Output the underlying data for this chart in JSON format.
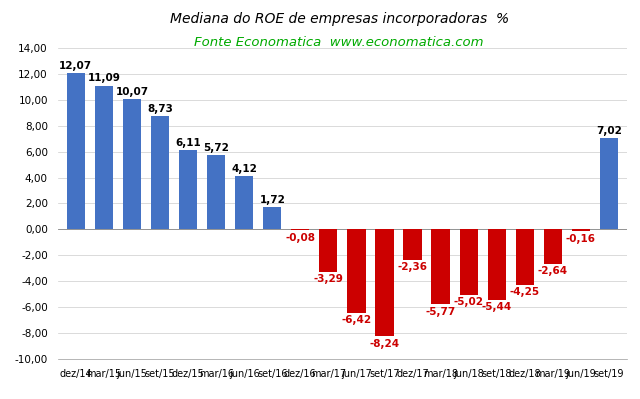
{
  "categories": [
    "dez/14",
    "mar/15",
    "jun/15",
    "set/15",
    "dez/15",
    "mar/16",
    "jun/16",
    "set/16",
    "dez/16",
    "mar/17",
    "jun/17",
    "set/17",
    "dez/17",
    "mar/18",
    "jun/18",
    "set/18",
    "dez/18",
    "mar/19",
    "jun/19",
    "set/19"
  ],
  "values": [
    12.07,
    11.09,
    10.07,
    8.73,
    6.11,
    5.72,
    4.12,
    1.72,
    -0.08,
    -3.29,
    -6.42,
    -8.24,
    -2.36,
    -5.77,
    -5.02,
    -5.44,
    -4.25,
    -2.64,
    -0.16,
    7.02
  ],
  "bar_colors_positive": "#4472C4",
  "bar_colors_negative": "#CC0000",
  "title": "Mediana do ROE de empresas incorporadoras  %",
  "subtitle": "Fonte Economatica  www.economatica.com",
  "subtitle_color": "#00AA00",
  "title_fontsize": 10,
  "subtitle_fontsize": 9.5,
  "tick_fontsize": 7.5,
  "xlabel_fontsize": 7.0,
  "ylim": [
    -10.0,
    14.0
  ],
  "yticks": [
    -10,
    -8,
    -6,
    -4,
    -2,
    0,
    2,
    4,
    6,
    8,
    10,
    12,
    14
  ],
  "background_color": "#FFFFFF",
  "label_fontsize": 7.5,
  "label_color_positive": "#000000",
  "label_color_negative": "#CC0000",
  "bar_width": 0.65
}
